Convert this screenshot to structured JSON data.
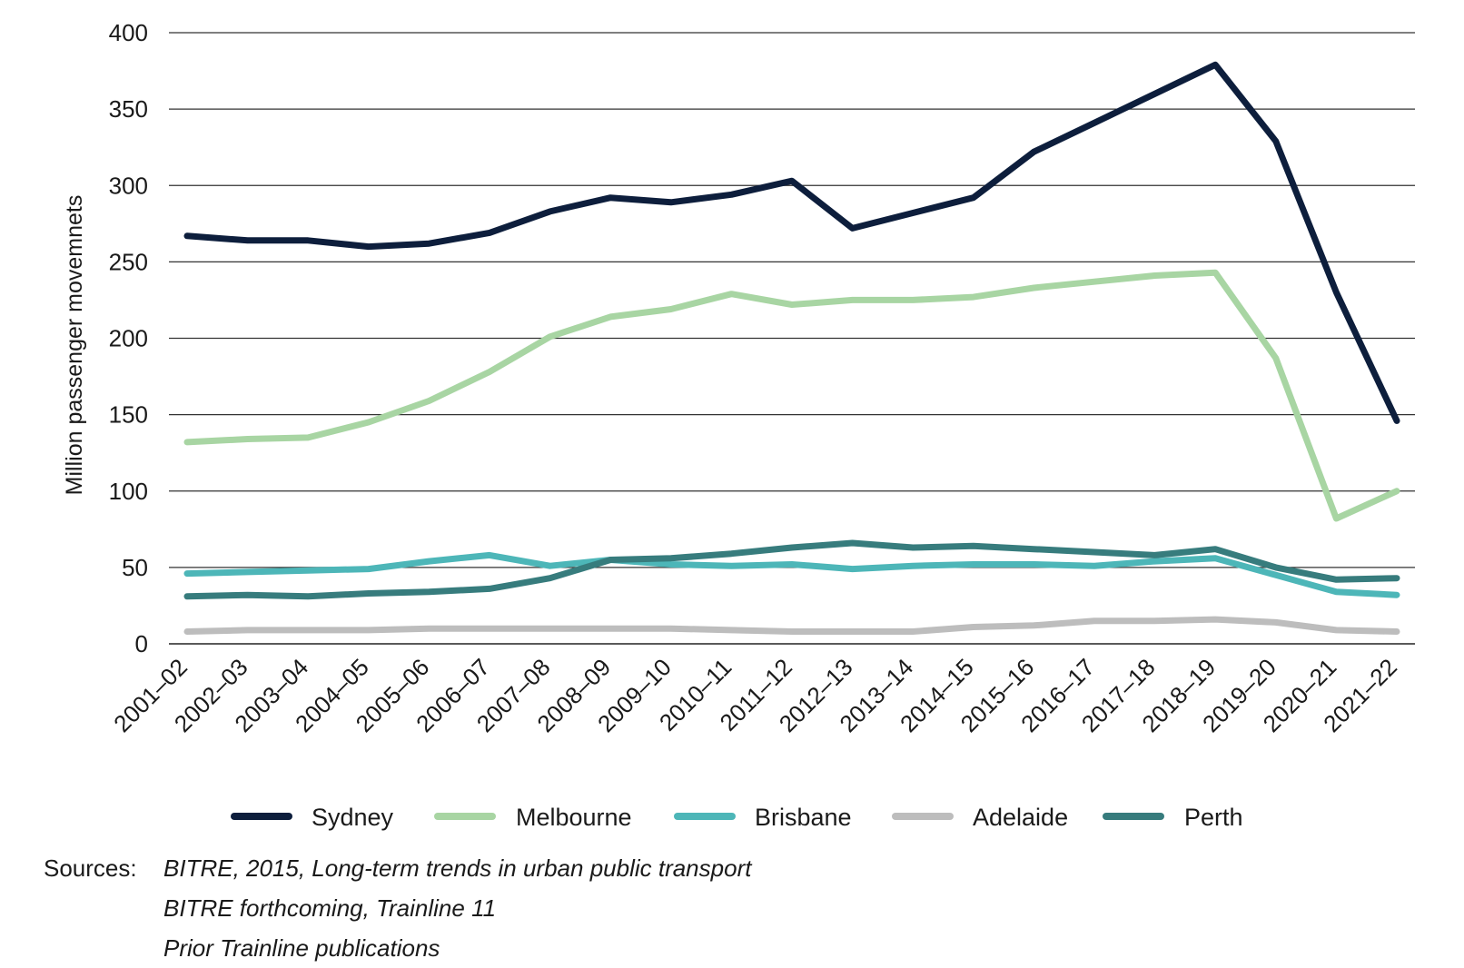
{
  "chart_data": {
    "type": "line",
    "title": "",
    "xlabel": "",
    "ylabel": "Million passenger movemnets",
    "ylim": [
      0,
      400
    ],
    "yticks": [
      0,
      50,
      100,
      150,
      200,
      250,
      300,
      350,
      400
    ],
    "ytick_labels": [
      "0",
      "50",
      "100",
      "150",
      "200",
      "250",
      "300",
      "350",
      "400"
    ],
    "grid": true,
    "legend_position": "bottom",
    "categories": [
      "2001–02",
      "2002–03",
      "2003–04",
      "2004–05",
      "2005–06",
      "2006–07",
      "2007–08",
      "2008–09",
      "2009–10",
      "2010–11",
      "2011–12",
      "2012–13",
      "2013–14",
      "2014–15",
      "2015–16",
      "2016–17",
      "2017–18",
      "2018–19",
      "2019–20",
      "2020–21",
      "2021–22"
    ],
    "series": [
      {
        "name": "Sydney",
        "color": "#0d1e3c",
        "values": [
          267,
          264,
          264,
          260,
          262,
          269,
          283,
          292,
          289,
          294,
          303,
          272,
          282,
          292,
          322,
          341,
          360,
          379,
          329,
          230,
          146
        ]
      },
      {
        "name": "Melbourne",
        "color": "#a8d5a3",
        "values": [
          132,
          134,
          135,
          145,
          159,
          178,
          201,
          214,
          219,
          229,
          222,
          225,
          225,
          227,
          233,
          237,
          241,
          243,
          187,
          82,
          100
        ]
      },
      {
        "name": "Brisbane",
        "color": "#4db6b8",
        "values": [
          46,
          47,
          48,
          49,
          54,
          58,
          51,
          55,
          52,
          51,
          52,
          49,
          51,
          52,
          52,
          51,
          54,
          56,
          45,
          34,
          32
        ]
      },
      {
        "name": "Adelaide",
        "color": "#bdbdbd",
        "values": [
          8,
          9,
          9,
          9,
          10,
          10,
          10,
          10,
          10,
          9,
          8,
          8,
          8,
          11,
          12,
          15,
          15,
          16,
          14,
          9,
          8
        ]
      },
      {
        "name": "Perth",
        "color": "#377c7d",
        "values": [
          31,
          32,
          31,
          33,
          34,
          36,
          43,
          55,
          56,
          59,
          63,
          66,
          63,
          64,
          62,
          60,
          58,
          62,
          50,
          42,
          43
        ]
      }
    ]
  },
  "sources": {
    "title": "Sources:",
    "lines": [
      "BITRE, 2015, Long-term trends in urban public transport",
      "BITRE forthcoming, Trainline 11",
      "Prior Trainline publications"
    ]
  }
}
